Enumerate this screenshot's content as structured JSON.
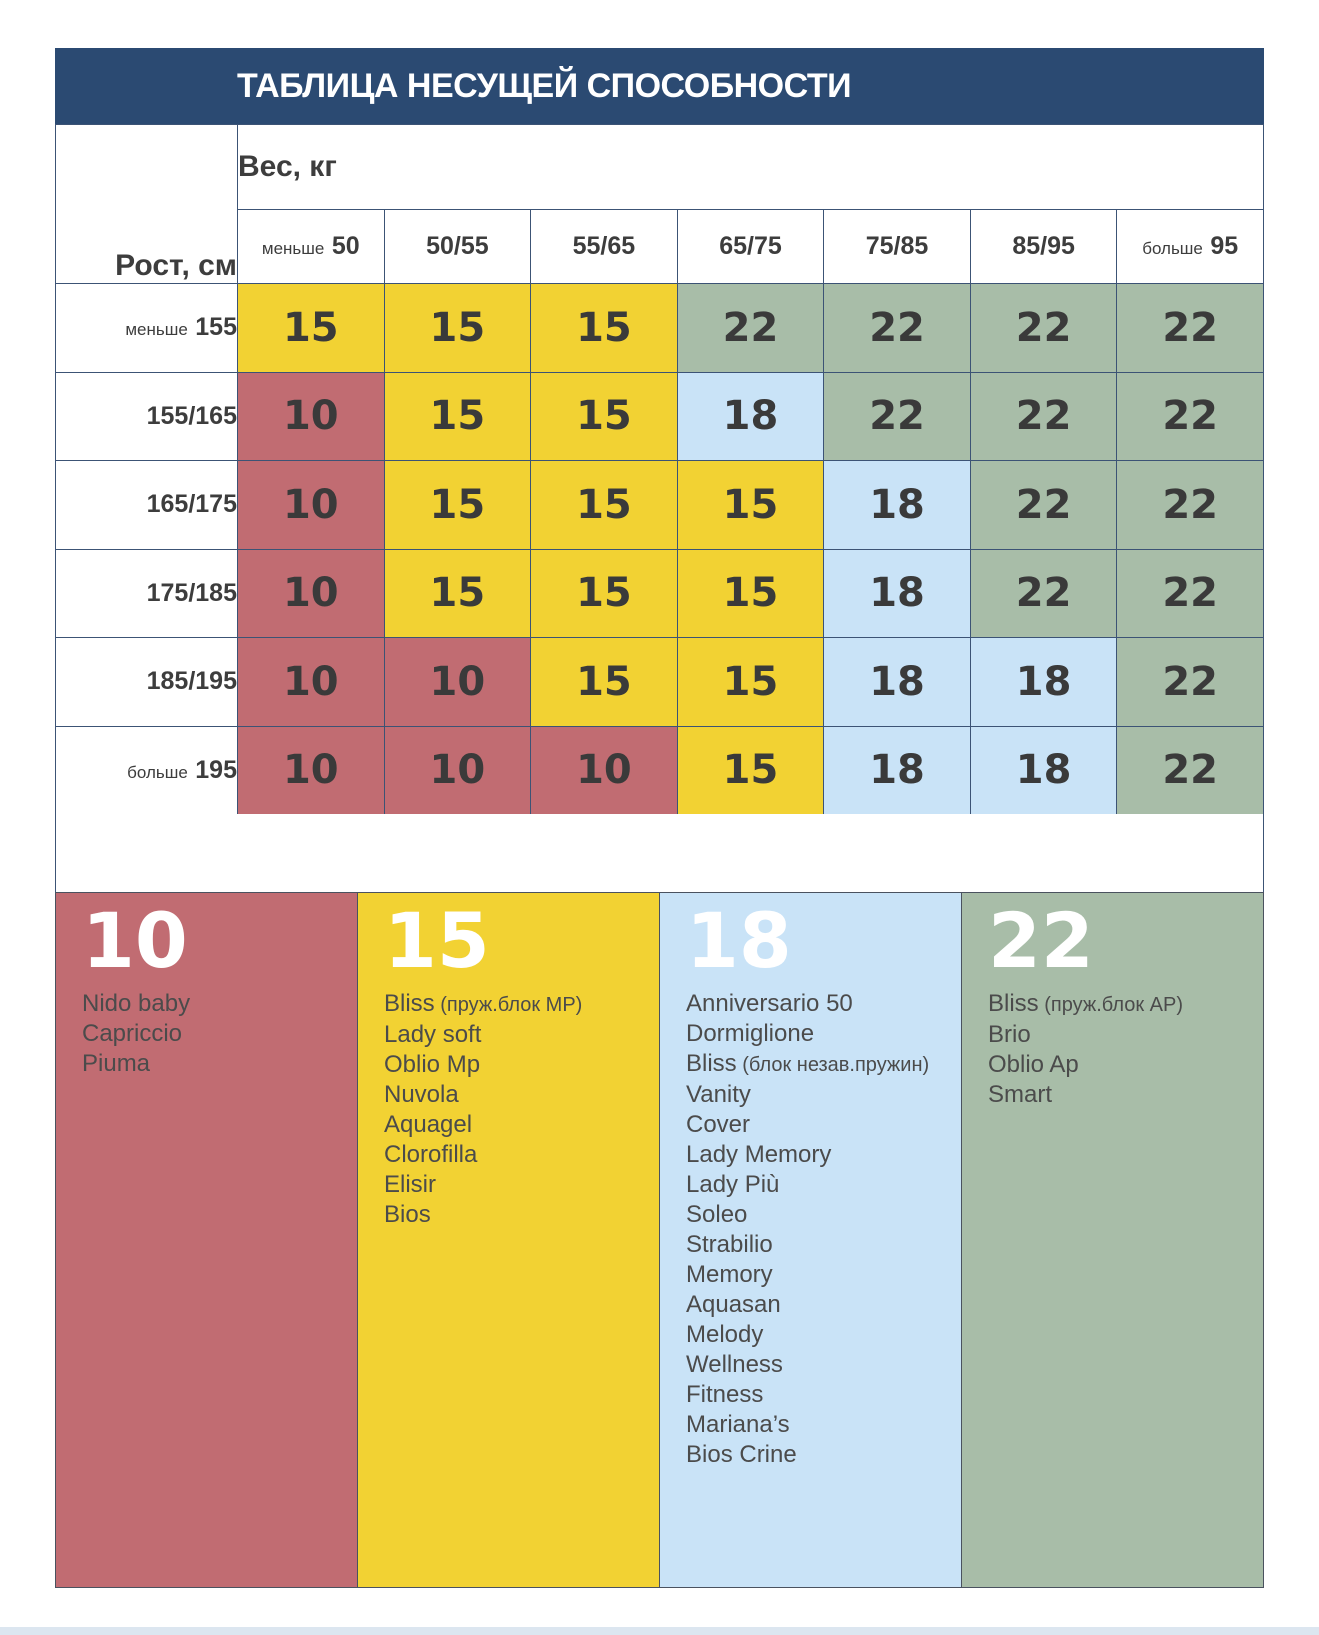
{
  "title": "ТАБЛИЦА НЕСУЩЕЙ СПОСОБНОСТИ",
  "weight_header": "Вес, кг",
  "height_header": "Рост, см",
  "columns": [
    {
      "small": "меньше",
      "big": "50"
    },
    {
      "small": "",
      "big": "50/55"
    },
    {
      "small": "",
      "big": "55/65"
    },
    {
      "small": "",
      "big": "65/75"
    },
    {
      "small": "",
      "big": "75/85"
    },
    {
      "small": "",
      "big": "85/95"
    },
    {
      "small": "больше",
      "big": "95"
    }
  ],
  "rows": [
    {
      "small": "меньше",
      "big": "155",
      "values": [
        15,
        15,
        15,
        22,
        22,
        22,
        22
      ]
    },
    {
      "small": "",
      "big": "155/165",
      "values": [
        10,
        15,
        15,
        18,
        22,
        22,
        22
      ]
    },
    {
      "small": "",
      "big": "165/175",
      "values": [
        10,
        15,
        15,
        15,
        18,
        22,
        22
      ]
    },
    {
      "small": "",
      "big": "175/185",
      "values": [
        10,
        15,
        15,
        15,
        18,
        22,
        22
      ]
    },
    {
      "small": "",
      "big": "185/195",
      "values": [
        10,
        10,
        15,
        15,
        18,
        18,
        22
      ]
    },
    {
      "small": "больше",
      "big": "195",
      "values": [
        10,
        10,
        10,
        15,
        18,
        18,
        22
      ]
    }
  ],
  "value_colors": {
    "10": "#c16c72",
    "15": "#f2d233",
    "18": "#c9e3f7",
    "22": "#a8bda8"
  },
  "legend": [
    {
      "value": "10",
      "items": [
        {
          "name": "Nido baby"
        },
        {
          "name": "Capriccio"
        },
        {
          "name": "Piuma"
        }
      ]
    },
    {
      "value": "15",
      "items": [
        {
          "name": "Bliss",
          "note": "(пруж.блок MP)"
        },
        {
          "name": "Lady soft"
        },
        {
          "name": "Oblio Mp"
        },
        {
          "name": "Nuvola"
        },
        {
          "name": "Aquagel"
        },
        {
          "name": "Clorofilla"
        },
        {
          "name": "Elisir"
        },
        {
          "name": "Bios"
        }
      ]
    },
    {
      "value": "18",
      "items": [
        {
          "name": "Anniversario 50"
        },
        {
          "name": "Dormiglione"
        },
        {
          "name": "Bliss",
          "note": "(блок незав.пружин)"
        },
        {
          "name": "Vanity"
        },
        {
          "name": "Cover"
        },
        {
          "name": "Lady Memory"
        },
        {
          "name": "Lady Più"
        },
        {
          "name": "Soleo"
        },
        {
          "name": "Strabilio"
        },
        {
          "name": "Memory"
        },
        {
          "name": "Aquasan"
        },
        {
          "name": "Melody"
        },
        {
          "name": "Wellness"
        },
        {
          "name": "Fitness"
        },
        {
          "name": "Mariana’s"
        },
        {
          "name": "Bios Crine"
        }
      ]
    },
    {
      "value": "22",
      "items": [
        {
          "name": "Bliss",
          "note": "(пруж.блок AP)"
        },
        {
          "name": "Brio"
        },
        {
          "name": "Oblio Ap"
        },
        {
          "name": "Smart"
        }
      ]
    }
  ],
  "colors": {
    "title_bar": "#2b4a72",
    "grid_line": "#3c5375",
    "legend_border": "#4a525f",
    "cell_text": "#3a3a3a",
    "label_text": "#3d3d3d",
    "legend_text": "#4b4b4b",
    "footer_strip": "#dce6f0"
  },
  "chart_data": {
    "type": "table",
    "title": "ТАБЛИЦА НЕСУЩЕЙ СПОСОБНОСТИ",
    "x_axis_label": "Вес, кг",
    "y_axis_label": "Рост, см",
    "columns": [
      "меньше 50",
      "50/55",
      "55/65",
      "65/75",
      "75/85",
      "85/95",
      "больше 95"
    ],
    "row_labels": [
      "меньше 155",
      "155/165",
      "165/175",
      "175/185",
      "185/195",
      "больше 195"
    ],
    "matrix": [
      [
        15,
        15,
        15,
        22,
        22,
        22,
        22
      ],
      [
        10,
        15,
        15,
        18,
        22,
        22,
        22
      ],
      [
        10,
        15,
        15,
        15,
        18,
        22,
        22
      ],
      [
        10,
        15,
        15,
        15,
        18,
        22,
        22
      ],
      [
        10,
        10,
        15,
        15,
        18,
        18,
        22
      ],
      [
        10,
        10,
        10,
        15,
        18,
        18,
        22
      ]
    ]
  }
}
